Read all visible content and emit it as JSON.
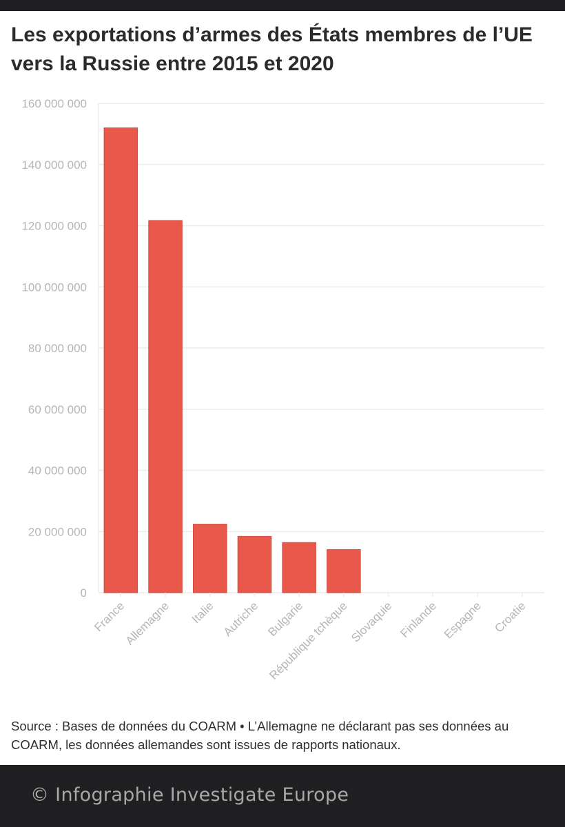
{
  "title": "Les exportations d’armes des États membres de l’UE vers la Russie entre 2015 et 2020",
  "source_note": "Source : Bases de données du COARM • L’Allemagne ne déclarant pas ses données au COARM, les données allemandes sont issues de rapports nationaux.",
  "credit": "© Infographie Investigate Europe",
  "colors": {
    "bar": "#e8594b",
    "grid": "#ececec",
    "axis_text": "#b5b5b5",
    "dark": "#1f1f21"
  },
  "chart_data": {
    "type": "bar",
    "title": "Les exportations d’armes des États membres de l’UE vers la Russie entre 2015 et 2020",
    "xlabel": "",
    "ylabel": "",
    "categories": [
      "France",
      "Allemagne",
      "Italie",
      "Autriche",
      "Bulgarie",
      "République tchèque",
      "Slovaquie",
      "Finlande",
      "Espagne",
      "Croatie"
    ],
    "values": [
      152000000,
      121700000,
      22400000,
      18400000,
      16400000,
      14100000,
      0,
      0,
      0,
      0
    ],
    "ylim": [
      0,
      160000000
    ],
    "yticks": [
      0,
      20000000,
      40000000,
      60000000,
      80000000,
      100000000,
      120000000,
      140000000,
      160000000
    ],
    "ytick_labels": [
      "0",
      "20 000 000",
      "40 000 000",
      "60 000 000",
      "80 000 000",
      "100 000 000",
      "120 000 000",
      "140 000 000",
      "160 000 000"
    ],
    "grid": true,
    "legend": "none"
  }
}
